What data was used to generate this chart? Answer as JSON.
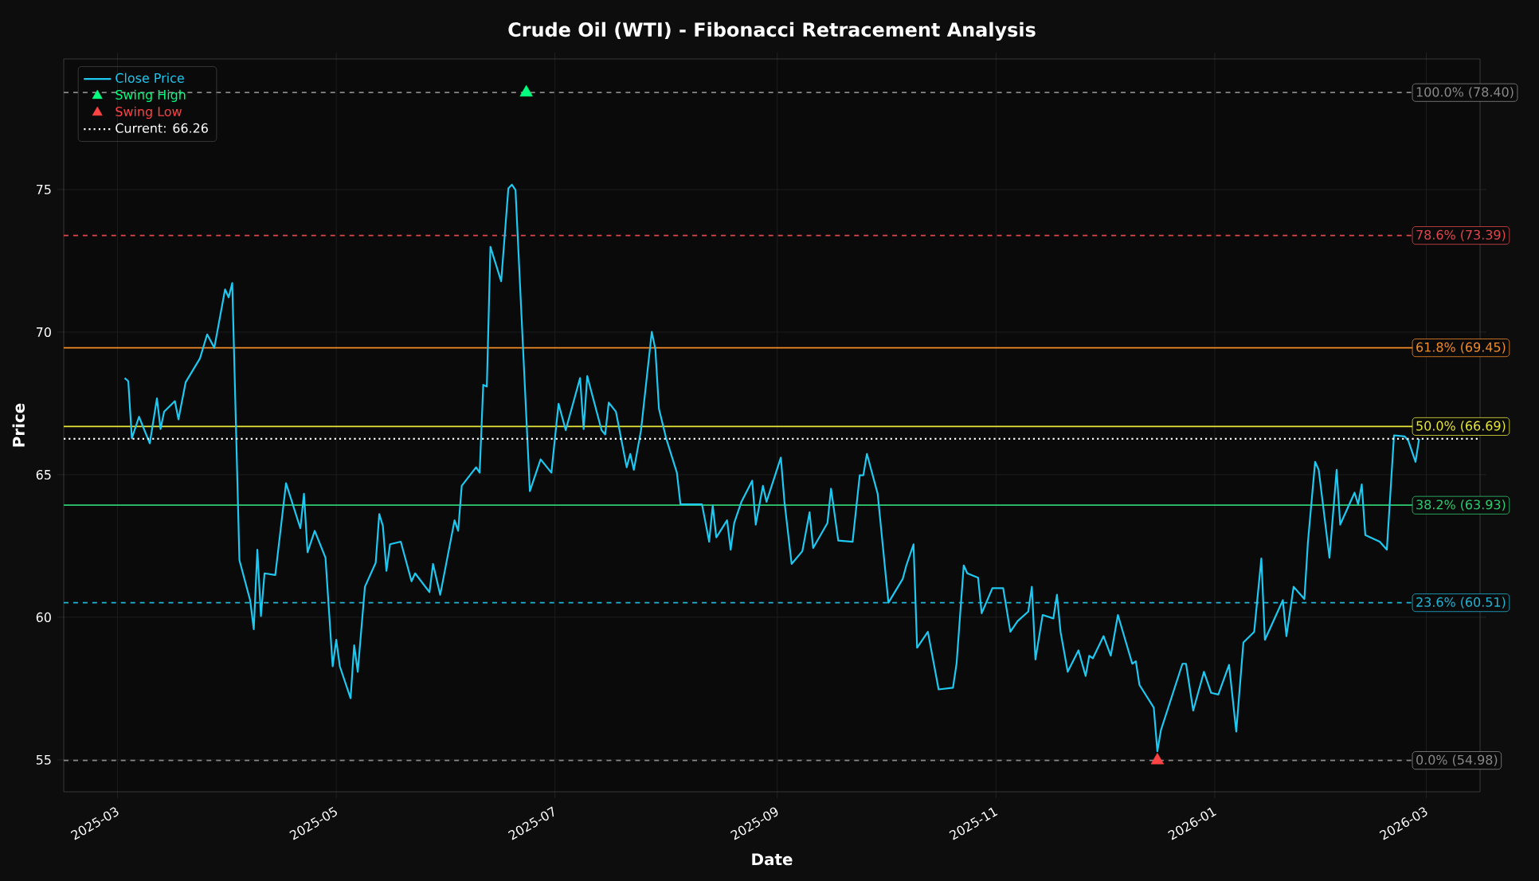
{
  "chart_data": {
    "type": "line",
    "title": "Crude Oil (WTI) - Fibonacci Retracement Analysis",
    "xlabel": "Date",
    "ylabel": "Price",
    "xlim": [
      "2025-02-14",
      "2026-03-16"
    ],
    "ylim": [
      53.88,
      79.58
    ],
    "xticks": [
      {
        "value": "2025-03-01",
        "label": "2025-03"
      },
      {
        "value": "2025-05-01",
        "label": "2025-05"
      },
      {
        "value": "2025-07-01",
        "label": "2025-07"
      },
      {
        "value": "2025-09-01",
        "label": "2025-09"
      },
      {
        "value": "2025-11-01",
        "label": "2025-11"
      },
      {
        "value": "2026-01-01",
        "label": "2026-01"
      },
      {
        "value": "2026-03-01",
        "label": "2026-03"
      }
    ],
    "yticks": [
      55,
      60,
      65,
      70,
      75
    ],
    "grid": true,
    "legend": "top left",
    "series": [
      {
        "name": "Close Price",
        "color": "#1ec8f0",
        "marker": "none",
        "line_style": "solid",
        "x": [
          "2025-03-03",
          "2025-03-04",
          "2025-03-05",
          "2025-03-07",
          "2025-03-10",
          "2025-03-12",
          "2025-03-13",
          "2025-03-14",
          "2025-03-17",
          "2025-03-18",
          "2025-03-20",
          "2025-03-24",
          "2025-03-26",
          "2025-03-28",
          "2025-03-31",
          "2025-04-01",
          "2025-04-02",
          "2025-04-04",
          "2025-04-07",
          "2025-04-08",
          "2025-04-09",
          "2025-04-10",
          "2025-04-11",
          "2025-04-14",
          "2025-04-17",
          "2025-04-21",
          "2025-04-22",
          "2025-04-23",
          "2025-04-25",
          "2025-04-28",
          "2025-04-30",
          "2025-05-01",
          "2025-05-02",
          "2025-05-05",
          "2025-05-06",
          "2025-05-07",
          "2025-05-09",
          "2025-05-12",
          "2025-05-13",
          "2025-05-14",
          "2025-05-15",
          "2025-05-16",
          "2025-05-19",
          "2025-05-22",
          "2025-05-23",
          "2025-05-27",
          "2025-05-28",
          "2025-05-30",
          "2025-06-03",
          "2025-06-04",
          "2025-06-05",
          "2025-06-09",
          "2025-06-10",
          "2025-06-11",
          "2025-06-12",
          "2025-06-13",
          "2025-06-16",
          "2025-06-18",
          "2025-06-19",
          "2025-06-20",
          "2025-06-24",
          "2025-06-27",
          "2025-06-30",
          "2025-07-02",
          "2025-07-04",
          "2025-07-08",
          "2025-07-09",
          "2025-07-10",
          "2025-07-14",
          "2025-07-15",
          "2025-07-16",
          "2025-07-18",
          "2025-07-21",
          "2025-07-22",
          "2025-07-23",
          "2025-07-25",
          "2025-07-28",
          "2025-07-29",
          "2025-07-30",
          "2025-08-01",
          "2025-08-04",
          "2025-08-05",
          "2025-08-11",
          "2025-08-13",
          "2025-08-14",
          "2025-08-15",
          "2025-08-18",
          "2025-08-19",
          "2025-08-20",
          "2025-08-22",
          "2025-08-25",
          "2025-08-26",
          "2025-08-28",
          "2025-08-29",
          "2025-09-02",
          "2025-09-03",
          "2025-09-05",
          "2025-09-08",
          "2025-09-10",
          "2025-09-11",
          "2025-09-15",
          "2025-09-16",
          "2025-09-18",
          "2025-09-22",
          "2025-09-24",
          "2025-09-25",
          "2025-09-26",
          "2025-09-29",
          "2025-10-02",
          "2025-10-06",
          "2025-10-07",
          "2025-10-09",
          "2025-10-10",
          "2025-10-13",
          "2025-10-16",
          "2025-10-20",
          "2025-10-21",
          "2025-10-23",
          "2025-10-24",
          "2025-10-27",
          "2025-10-28",
          "2025-10-31",
          "2025-11-03",
          "2025-11-05",
          "2025-11-07",
          "2025-11-10",
          "2025-11-11",
          "2025-11-12",
          "2025-11-14",
          "2025-11-17",
          "2025-11-18",
          "2025-11-19",
          "2025-11-21",
          "2025-11-24",
          "2025-11-26",
          "2025-11-27",
          "2025-11-28",
          "2025-12-01",
          "2025-12-03",
          "2025-12-05",
          "2025-12-09",
          "2025-12-10",
          "2025-12-11",
          "2025-12-15",
          "2025-12-16",
          "2025-12-17",
          "2025-12-23",
          "2025-12-24",
          "2025-12-26",
          "2025-12-29",
          "2025-12-31",
          "2026-01-02",
          "2026-01-05",
          "2026-01-07",
          "2026-01-09",
          "2026-01-12",
          "2026-01-14",
          "2026-01-15",
          "2026-01-20",
          "2026-01-21",
          "2026-01-23",
          "2026-01-26",
          "2026-01-27",
          "2026-01-29",
          "2026-01-30",
          "2026-02-02",
          "2026-02-04",
          "2026-02-05",
          "2026-02-09",
          "2026-02-10",
          "2026-02-11",
          "2026-02-12",
          "2026-02-16",
          "2026-02-18",
          "2026-02-20",
          "2026-02-23",
          "2026-02-24",
          "2026-02-26",
          "2026-02-27"
        ],
        "values": [
          68.39,
          68.28,
          66.28,
          67.03,
          66.1,
          67.68,
          66.6,
          67.21,
          67.58,
          66.94,
          68.24,
          69.08,
          69.92,
          69.45,
          71.5,
          71.22,
          71.72,
          62.0,
          60.59,
          59.58,
          62.37,
          60.04,
          61.54,
          61.48,
          64.7,
          63.12,
          64.33,
          62.28,
          63.03,
          62.09,
          58.28,
          59.21,
          58.28,
          57.16,
          59.02,
          58.09,
          61.07,
          61.91,
          63.62,
          63.21,
          61.63,
          62.56,
          62.65,
          61.26,
          61.54,
          60.88,
          61.87,
          60.79,
          63.4,
          63.03,
          64.61,
          65.26,
          65.07,
          68.15,
          68.09,
          72.99,
          71.78,
          75.04,
          75.17,
          74.98,
          64.42,
          65.54,
          65.07,
          67.49,
          66.56,
          68.39,
          66.6,
          68.46,
          66.56,
          66.41,
          67.53,
          67.21,
          65.26,
          65.73,
          65.17,
          66.56,
          70.01,
          69.4,
          67.31,
          66.28,
          65.07,
          63.96,
          63.96,
          62.65,
          63.92,
          62.8,
          63.4,
          62.37,
          63.31,
          64.05,
          64.79,
          63.25,
          64.61,
          64.05,
          65.6,
          64.05,
          61.87,
          62.32,
          63.68,
          62.43,
          63.31,
          64.51,
          62.69,
          62.65,
          64.98,
          64.98,
          65.73,
          64.33,
          60.51,
          61.35,
          61.82,
          62.56,
          58.93,
          59.49,
          57.47,
          57.53,
          58.37,
          61.82,
          61.54,
          61.39,
          60.14,
          61.02,
          61.02,
          59.49,
          59.86,
          60.2,
          61.07,
          58.52,
          60.08,
          59.96,
          60.79,
          59.49,
          58.09,
          58.84,
          57.94,
          58.65,
          58.56,
          59.34,
          58.65,
          60.08,
          58.37,
          58.46,
          57.63,
          56.83,
          55.3,
          56.04,
          58.37,
          58.37,
          56.73,
          58.09,
          57.35,
          57.29,
          58.33,
          55.99,
          59.12,
          59.49,
          62.06,
          59.21,
          60.6,
          59.34,
          61.07,
          60.64,
          62.65,
          65.45,
          65.17,
          62.09,
          65.17,
          63.25,
          64.37,
          63.96,
          64.66,
          62.88,
          62.65,
          62.37,
          66.38,
          66.34,
          66.19,
          65.45,
          66.26
        ]
      },
      {
        "name": "Swing High",
        "type": "scatter",
        "color": "#00ff7f",
        "marker": "triangle",
        "x": [
          "2025-06-23"
        ],
        "values": [
          78.4
        ]
      },
      {
        "name": "Swing Low",
        "type": "scatter",
        "color": "#ff4444",
        "marker": "triangle",
        "x": [
          "2025-12-16"
        ],
        "values": [
          54.98
        ]
      },
      {
        "name": "Current: 66.26",
        "color": "#ffffff",
        "marker": "none",
        "line_style": "dotted",
        "x": [
          "2025-02-14",
          "2026-03-16"
        ],
        "values": [
          66.26,
          66.26
        ]
      }
    ],
    "ref_lines": [
      {
        "axis": "y",
        "value": 78.4,
        "label": "100.0% (78.40)",
        "color": "#888888",
        "line_style": "dashed"
      },
      {
        "axis": "y",
        "value": 73.39,
        "label": "78.6% (73.39)",
        "color": "#e0474c",
        "line_style": "dashed"
      },
      {
        "axis": "y",
        "value": 69.45,
        "label": "61.8% (69.45)",
        "color": "#f28c28",
        "line_style": "solid"
      },
      {
        "axis": "y",
        "value": 66.69,
        "label": "50.0% (66.69)",
        "color": "#e8e83a",
        "line_style": "solid"
      },
      {
        "axis": "y",
        "value": 63.93,
        "label": "38.2% (63.93)",
        "color": "#2ecc71",
        "line_style": "solid"
      },
      {
        "axis": "y",
        "value": 60.51,
        "label": "23.6% (60.51)",
        "color": "#1fb5d6",
        "line_style": "dashed"
      },
      {
        "axis": "y",
        "value": 54.98,
        "label": "0.0% (54.98)",
        "color": "#888888",
        "line_style": "dashed"
      }
    ]
  }
}
